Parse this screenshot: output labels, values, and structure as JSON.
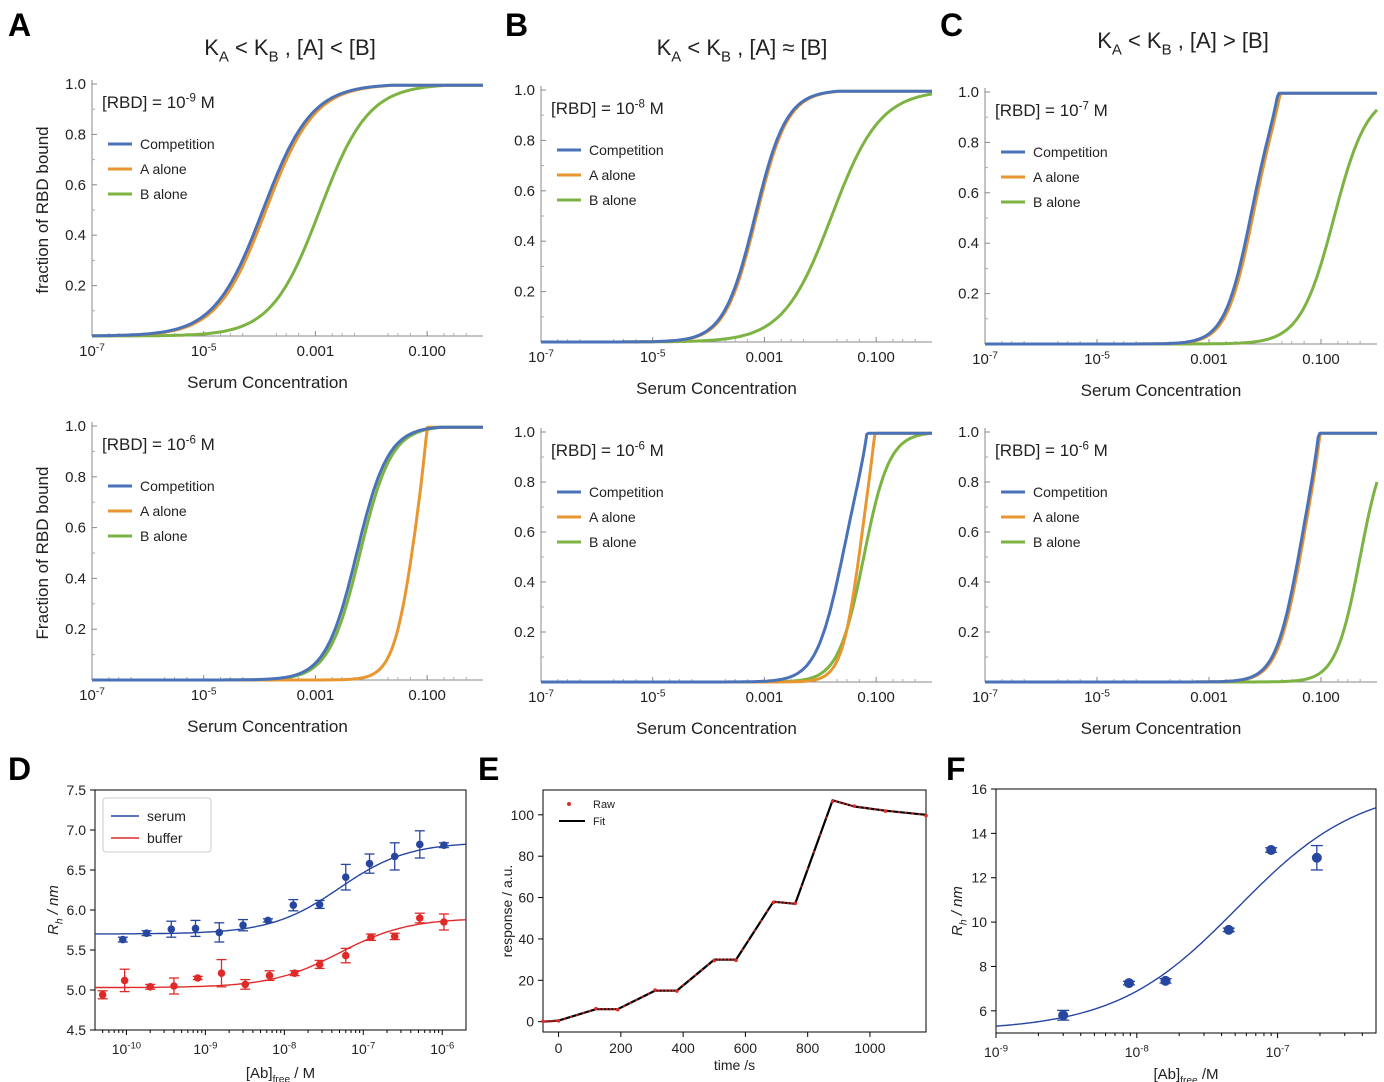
{
  "panel_labels": [
    "A",
    "B",
    "C",
    "D",
    "E",
    "F"
  ],
  "colors": {
    "competition": "#4a72b8",
    "a_alone": "#e8962f",
    "b_alone": "#7cb342",
    "serum": "#2646a0",
    "buffer": "#e02a2a",
    "raw": "#e02a2a",
    "fit": "#000000",
    "f_data": "#2646a0"
  },
  "chart_data": [
    {
      "id": "A1",
      "type": "line",
      "panel": "A",
      "title": "K_A < K_B , [A] < [B]",
      "annotation": "[RBD] = 10^-9 M",
      "ylabel": "fraction of RBD bound",
      "xlabel": "Serum Concentration",
      "xscale": "log",
      "xlim": [
        1e-07,
        1
      ],
      "ylim": [
        0,
        1
      ],
      "xticks": [
        "10^-7",
        "10^-5",
        "0.001",
        "0.100"
      ],
      "yticks": [
        "0.2",
        "0.4",
        "0.6",
        "0.8",
        "1.0"
      ],
      "legend": [
        "Competition",
        "A alone",
        "B alone"
      ],
      "series": [
        {
          "name": "Competition",
          "mid": 0.000115,
          "n": 1.0
        },
        {
          "name": "A alone",
          "mid": 0.00013,
          "n": 1.0
        },
        {
          "name": "B alone",
          "mid": 0.0012,
          "n": 1.0
        }
      ]
    },
    {
      "id": "B1",
      "type": "line",
      "panel": "B",
      "title": "K_A < K_B , [A] ≈ [B]",
      "annotation": "[RBD] = 10^-8 M",
      "ylabel": "",
      "xlabel": "Serum Concentration",
      "xscale": "log",
      "xlim": [
        1e-07,
        1
      ],
      "ylim": [
        0,
        1
      ],
      "xticks": [
        "10^-7",
        "10^-5",
        "0.001",
        "0.100"
      ],
      "yticks": [
        "0.2",
        "0.4",
        "0.6",
        "0.8",
        "1.0"
      ],
      "legend": [
        "Competition",
        "A alone",
        "B alone"
      ],
      "series": [
        {
          "name": "Competition",
          "mid": 0.00068,
          "n": 1.55
        },
        {
          "name": "A alone",
          "mid": 0.00072,
          "n": 1.55
        },
        {
          "name": "B alone",
          "mid": 0.016,
          "n": 1.0
        }
      ]
    },
    {
      "id": "C1",
      "type": "line",
      "panel": "C",
      "title": "K_A < K_B , [A] > [B]",
      "annotation": "[RBD] = 10^-7 M",
      "ylabel": "",
      "xlabel": "Serum Concentration",
      "xscale": "log",
      "xlim": [
        1e-07,
        1
      ],
      "ylim": [
        0,
        1
      ],
      "xticks": [
        "10^-7",
        "10^-5",
        "0.001",
        "0.100"
      ],
      "yticks": [
        "0.2",
        "0.4",
        "0.6",
        "0.8",
        "1.0"
      ],
      "legend": [
        "Competition",
        "A alone",
        "B alone"
      ],
      "series": [
        {
          "name": "Competition",
          "mid": 0.0055,
          "n": 1.85,
          "cap": 0.022
        },
        {
          "name": "A alone",
          "mid": 0.006,
          "n": 1.85,
          "cap": 0.024
        },
        {
          "name": "B alone",
          "mid": 0.17,
          "n": 1.45
        }
      ]
    },
    {
      "id": "A2",
      "type": "line",
      "panel": "A",
      "annotation": "[RBD] = 10^-6 M",
      "ylabel": "Fraction of RBD bound",
      "xlabel": "Serum Concentration",
      "xscale": "log",
      "xlim": [
        1e-07,
        1
      ],
      "ylim": [
        0,
        1
      ],
      "xticks": [
        "10^-7",
        "10^-5",
        "0.001",
        "0.100"
      ],
      "yticks": [
        "0.2",
        "0.4",
        "0.6",
        "0.8",
        "1.0"
      ],
      "legend": [
        "Competition",
        "A alone",
        "B alone"
      ],
      "series": [
        {
          "name": "Competition",
          "mid": 0.0055,
          "n": 1.55
        },
        {
          "name": "A alone",
          "mid": 0.055,
          "n": 2.3,
          "cap": 0.1
        },
        {
          "name": "B alone",
          "mid": 0.0063,
          "n": 1.55
        }
      ]
    },
    {
      "id": "B2",
      "type": "line",
      "panel": "B",
      "annotation": "[RBD] = 10^-6 M",
      "ylabel": "",
      "xlabel": "Serum Concentration",
      "xscale": "log",
      "xlim": [
        1e-07,
        1
      ],
      "ylim": [
        0,
        1
      ],
      "xticks": [
        "10^-7",
        "10^-5",
        "0.001",
        "0.100"
      ],
      "yticks": [
        "0.2",
        "0.4",
        "0.6",
        "0.8",
        "1.0"
      ],
      "legend": [
        "Competition",
        "A alone",
        "B alone"
      ],
      "series": [
        {
          "name": "Competition",
          "mid": 0.025,
          "n": 1.8,
          "cap": 0.08
        },
        {
          "name": "A alone",
          "mid": 0.05,
          "n": 2.6,
          "cap": 0.105
        },
        {
          "name": "B alone",
          "mid": 0.06,
          "n": 1.9
        }
      ]
    },
    {
      "id": "C2",
      "type": "line",
      "panel": "C",
      "annotation": "[RBD] = 10^-6 M",
      "ylabel": "",
      "xlabel": "Serum Concentration",
      "xscale": "log",
      "xlim": [
        1e-07,
        1
      ],
      "ylim": [
        0,
        1
      ],
      "xticks": [
        "10^-7",
        "10^-5",
        "0.001",
        "0.100"
      ],
      "yticks": [
        "0.2",
        "0.4",
        "0.6",
        "0.8",
        "1.0"
      ],
      "legend": [
        "Competition",
        "A alone",
        "B alone"
      ],
      "series": [
        {
          "name": "Competition",
          "mid": 0.04,
          "n": 2.0,
          "cap": 0.1
        },
        {
          "name": "A alone",
          "mid": 0.043,
          "n": 2.0,
          "cap": 0.105
        },
        {
          "name": "B alone",
          "mid": 0.5,
          "n": 2.0
        }
      ]
    },
    {
      "id": "D",
      "type": "scatter",
      "panel": "D",
      "ylabel": "R_h / nm",
      "xlabel": "[Ab]_free / M",
      "xscale": "log",
      "xlim": [
        4e-11,
        2e-06
      ],
      "ylim": [
        4.5,
        7.5
      ],
      "yticks": [
        "4.5",
        "5.0",
        "5.5",
        "6.0",
        "6.5",
        "7.0",
        "7.5"
      ],
      "xticks": [
        "10^-10",
        "10^-9",
        "10^-8",
        "10^-7",
        "10^-6"
      ],
      "legend": [
        "serum",
        "buffer"
      ],
      "series": [
        {
          "name": "serum",
          "x": [
            9e-11,
            1.8e-10,
            3.7e-10,
            7.5e-10,
            1.5e-09,
            3e-09,
            6.2e-09,
            1.3e-08,
            2.8e-08,
            6e-08,
            1.2e-07,
            2.5e-07,
            5.2e-07,
            1.05e-06
          ],
          "y": [
            5.63,
            5.71,
            5.76,
            5.77,
            5.72,
            5.81,
            5.87,
            6.06,
            6.07,
            6.41,
            6.58,
            6.67,
            6.82,
            6.81
          ],
          "err": [
            0.03,
            0.03,
            0.1,
            0.1,
            0.12,
            0.07,
            0.02,
            0.07,
            0.05,
            0.16,
            0.12,
            0.17,
            0.17,
            0.03
          ],
          "fit": {
            "base": 5.7,
            "top": 6.85,
            "mid": 5e-08,
            "n": 1.0
          }
        },
        {
          "name": "buffer",
          "x": [
            5e-11,
            9.5e-11,
            2e-10,
            4e-10,
            8e-10,
            1.6e-09,
            3.2e-09,
            6.5e-09,
            1.35e-08,
            2.8e-08,
            6e-08,
            1.25e-07,
            2.5e-07,
            5.2e-07,
            1.05e-06
          ],
          "y": [
            4.94,
            5.12,
            5.04,
            5.05,
            5.15,
            5.21,
            5.07,
            5.18,
            5.21,
            5.32,
            5.43,
            5.66,
            5.67,
            5.9,
            5.85
          ],
          "err": [
            0.05,
            0.14,
            0.03,
            0.1,
            0.02,
            0.17,
            0.06,
            0.06,
            0.03,
            0.05,
            0.09,
            0.04,
            0.04,
            0.06,
            0.1
          ],
          "fit": {
            "base": 5.03,
            "top": 5.9,
            "mid": 5e-08,
            "n": 1.0
          }
        }
      ]
    },
    {
      "id": "E",
      "type": "line",
      "panel": "E",
      "ylabel": "response / a.u.",
      "xlabel": "time /s",
      "xlim": [
        -50,
        1180
      ],
      "ylim": [
        -5,
        112
      ],
      "xticks": [
        "0",
        "200",
        "400",
        "600",
        "800",
        "1000"
      ],
      "yticks": [
        "0",
        "20",
        "40",
        "60",
        "80",
        "100"
      ],
      "legend": [
        "Raw",
        "Fit"
      ],
      "series": [
        {
          "name": "Fit",
          "x": [
            -50,
            0,
            120,
            190,
            310,
            380,
            500,
            570,
            690,
            760,
            880,
            950,
            1050,
            1180
          ],
          "y": [
            0,
            0.5,
            6,
            6,
            15,
            15,
            30,
            30,
            58,
            57,
            107,
            104,
            102,
            100
          ]
        },
        {
          "name": "Raw",
          "x": [
            -50,
            0,
            120,
            190,
            310,
            380,
            500,
            570,
            690,
            760,
            880,
            950,
            1050,
            1180
          ],
          "y": [
            0.2,
            0.4,
            6.3,
            5.8,
            15.3,
            14.8,
            29.5,
            29.7,
            57.6,
            57.2,
            106.5,
            104.2,
            101.8,
            99.6
          ]
        }
      ]
    },
    {
      "id": "F",
      "type": "scatter",
      "panel": "F",
      "ylabel": "R_h / nm",
      "xlabel": "[Ab]_free /M",
      "xscale": "log",
      "xlim": [
        1e-09,
        5e-07
      ],
      "ylim": [
        5,
        16
      ],
      "yticks": [
        "6",
        "8",
        "10",
        "12",
        "14",
        "16"
      ],
      "xticks": [
        "10^-9",
        "10^-8",
        "10^-7"
      ],
      "series": [
        {
          "name": "data",
          "x": [
            3e-09,
            8.8e-09,
            1.6e-08,
            4.5e-08,
            9e-08,
            1.9e-07
          ],
          "y": [
            5.8,
            7.25,
            7.35,
            9.65,
            13.25,
            12.9
          ],
          "err": [
            0.22,
            0.08,
            0.1,
            0.08,
            0.1,
            0.55
          ],
          "fit": {
            "base": 5.1,
            "top": 16.2,
            "mid": 5.2e-08,
            "n": 1.0
          }
        }
      ]
    }
  ]
}
